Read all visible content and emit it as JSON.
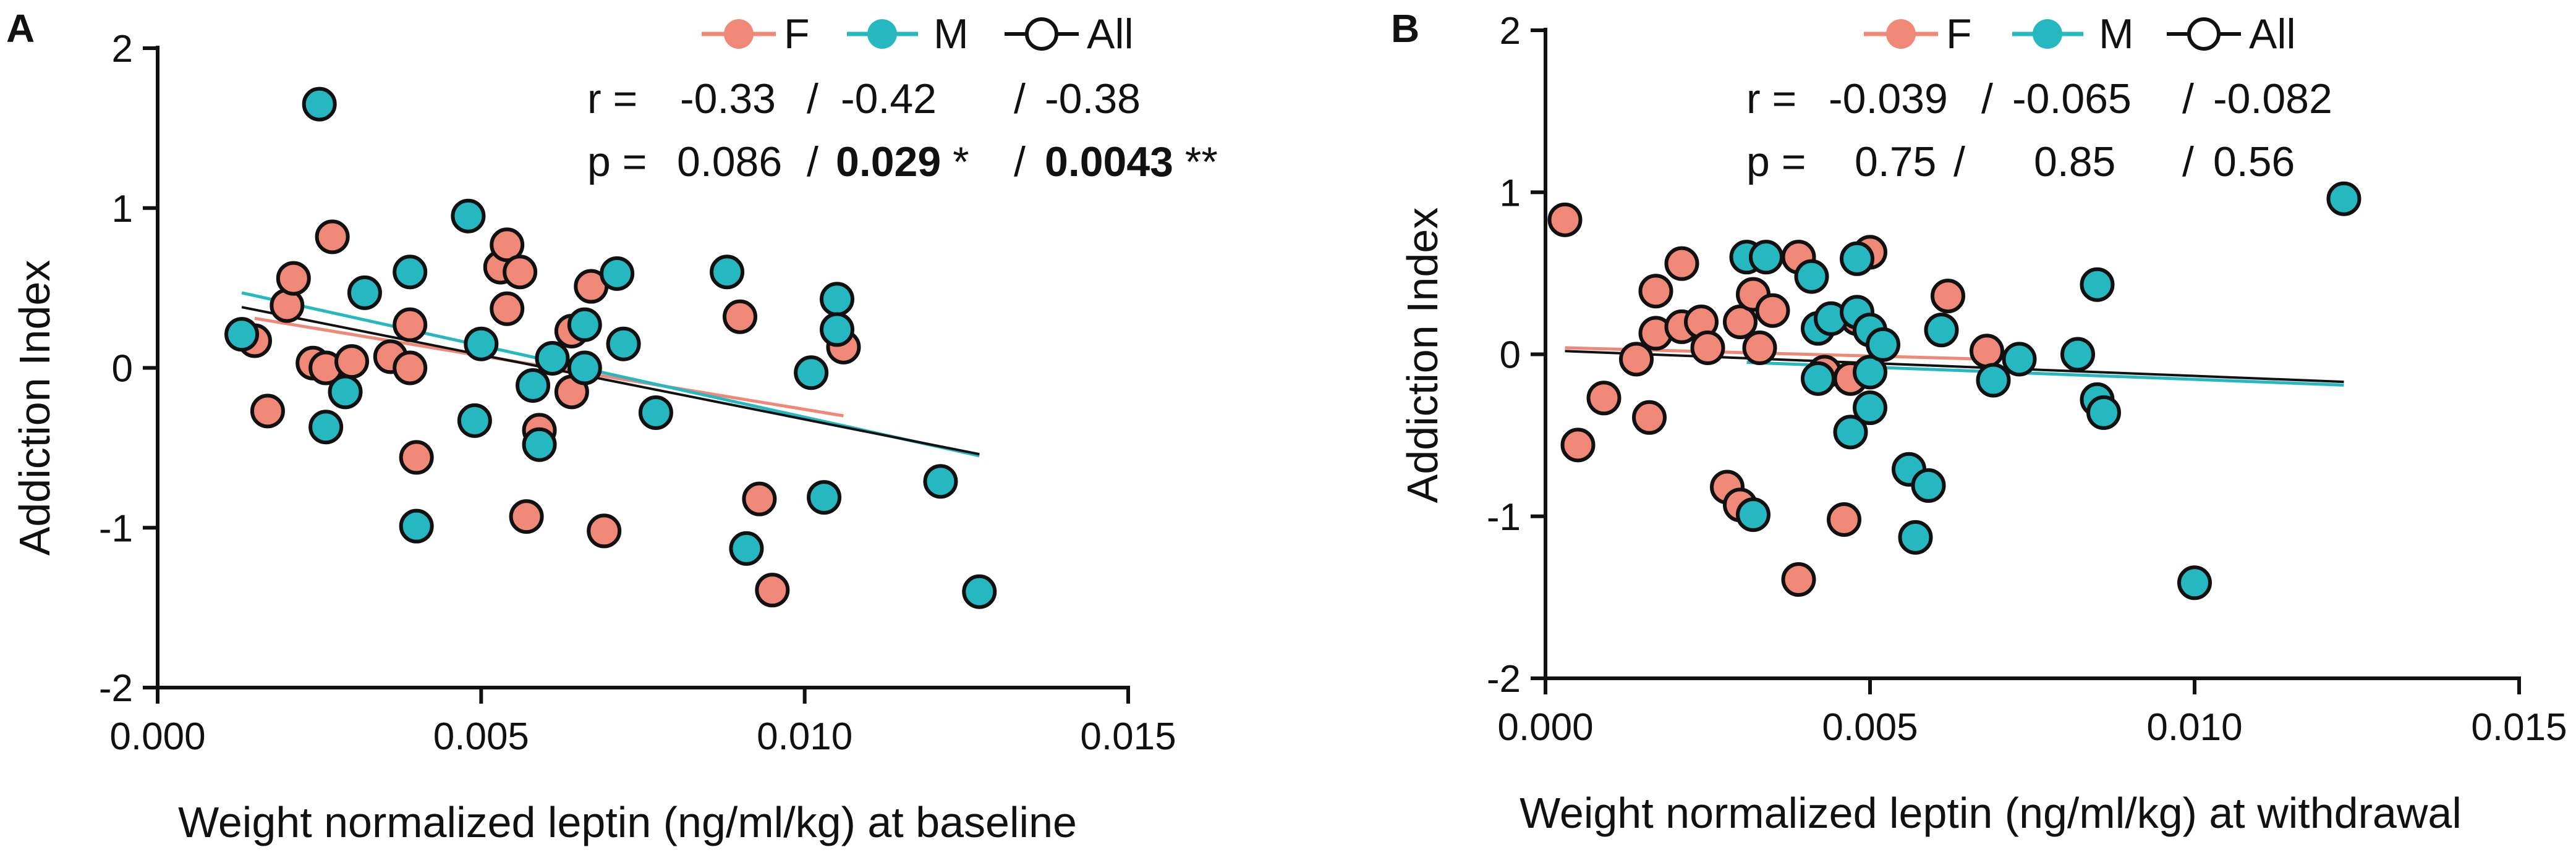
{
  "chart_data": [
    {
      "type": "scatter",
      "panel": "A",
      "xlabel": "Weight normalized leptin (ng/ml/kg) at baseline",
      "ylabel": "Addiction Index",
      "xlim": [
        0.0,
        0.015
      ],
      "ylim": [
        -2,
        2
      ],
      "xticks": [
        "0.000",
        "0.005",
        "0.010",
        "0.015"
      ],
      "yticks": [
        "2",
        "1",
        "0",
        "-1",
        "-2"
      ],
      "legend": {
        "placement": "top-right",
        "items": [
          {
            "key": "F",
            "label": "F"
          },
          {
            "key": "M",
            "label": "M"
          },
          {
            "key": "All",
            "label": "All"
          }
        ]
      },
      "stats": {
        "r_prefix": "r =",
        "r_values": [
          "-0.33",
          "-0.42",
          "-0.38"
        ],
        "p_prefix": "p =",
        "p_values": [
          {
            "value": "0.086",
            "stars": "",
            "bold": false
          },
          {
            "value": "0.029",
            "stars": "*",
            "bold": true
          },
          {
            "value": "0.0043",
            "stars": "**",
            "bold": true
          }
        ],
        "separator": "/"
      },
      "series": [
        {
          "name": "F",
          "points": [
            [
              0.0015,
              0.17
            ],
            [
              0.0017,
              -0.27
            ],
            [
              0.002,
              0.39
            ],
            [
              0.0021,
              0.56
            ],
            [
              0.0024,
              0.03
            ],
            [
              0.0026,
              0.0
            ],
            [
              0.0027,
              0.82
            ],
            [
              0.003,
              0.04
            ],
            [
              0.0036,
              0.07
            ],
            [
              0.0039,
              0.0
            ],
            [
              0.0039,
              0.27
            ],
            [
              0.004,
              -0.56
            ],
            [
              0.0053,
              0.63
            ],
            [
              0.0054,
              0.37
            ],
            [
              0.0054,
              0.77
            ],
            [
              0.0056,
              0.6
            ],
            [
              0.0057,
              -0.93
            ],
            [
              0.0059,
              -0.39
            ],
            [
              0.0064,
              -0.15
            ],
            [
              0.0064,
              0.23
            ],
            [
              0.0067,
              0.51
            ],
            [
              0.0069,
              -1.02
            ],
            [
              0.009,
              0.32
            ],
            [
              0.0093,
              -0.82
            ],
            [
              0.0095,
              -1.39
            ],
            [
              0.0106,
              0.13
            ]
          ]
        },
        {
          "name": "M",
          "points": [
            [
              0.0013,
              0.21
            ],
            [
              0.0025,
              1.65
            ],
            [
              0.0026,
              -0.37
            ],
            [
              0.0029,
              -0.15
            ],
            [
              0.0032,
              0.47
            ],
            [
              0.0039,
              0.6
            ],
            [
              0.004,
              -0.99
            ],
            [
              0.0048,
              0.95
            ],
            [
              0.0049,
              -0.33
            ],
            [
              0.005,
              0.15
            ],
            [
              0.0058,
              -0.11
            ],
            [
              0.0059,
              -0.48
            ],
            [
              0.0061,
              0.06
            ],
            [
              0.0066,
              0.0
            ],
            [
              0.0066,
              0.27
            ],
            [
              0.0071,
              0.59
            ],
            [
              0.0072,
              0.15
            ],
            [
              0.0077,
              -0.28
            ],
            [
              0.0088,
              0.6
            ],
            [
              0.0091,
              -1.13
            ],
            [
              0.0101,
              -0.03
            ],
            [
              0.0103,
              -0.81
            ],
            [
              0.0105,
              0.43
            ],
            [
              0.0105,
              0.24
            ],
            [
              0.0121,
              -0.71
            ],
            [
              0.0127,
              -1.4
            ]
          ]
        }
      ],
      "fit_lines": [
        {
          "name": "F",
          "x": [
            0.0015,
            0.0106
          ],
          "y": [
            0.31,
            -0.3
          ]
        },
        {
          "name": "M",
          "x": [
            0.0013,
            0.0127
          ],
          "y": [
            0.47,
            -0.55
          ]
        },
        {
          "name": "All",
          "x": [
            0.0013,
            0.0127
          ],
          "y": [
            0.38,
            -0.54
          ]
        }
      ]
    },
    {
      "type": "scatter",
      "panel": "B",
      "xlabel": "Weight normalized leptin (ng/ml/kg) at withdrawal",
      "ylabel": "Addiction Index",
      "xlim": [
        0.0,
        0.015
      ],
      "ylim": [
        -2,
        2
      ],
      "xticks": [
        "0.000",
        "0.005",
        "0.010",
        "0.015"
      ],
      "yticks": [
        "2",
        "1",
        "0",
        "-1",
        "-2"
      ],
      "legend": {
        "placement": "top-center",
        "items": [
          {
            "key": "F",
            "label": "F"
          },
          {
            "key": "M",
            "label": "M"
          },
          {
            "key": "All",
            "label": "All"
          }
        ]
      },
      "stats": {
        "r_prefix": "r =",
        "r_values": [
          "-0.039",
          "-0.065",
          "-0.082"
        ],
        "p_prefix": "p =",
        "p_values": [
          {
            "value": "0.75",
            "stars": "",
            "bold": false
          },
          {
            "value": "0.85",
            "stars": "",
            "bold": false
          },
          {
            "value": "0.56",
            "stars": "",
            "bold": false
          }
        ],
        "separator": "/"
      },
      "series": [
        {
          "name": "F",
          "points": [
            [
              0.0003,
              0.83
            ],
            [
              0.0005,
              -0.56
            ],
            [
              0.0009,
              -0.27
            ],
            [
              0.0014,
              -0.03
            ],
            [
              0.0016,
              -0.39
            ],
            [
              0.0017,
              0.39
            ],
            [
              0.0017,
              0.13
            ],
            [
              0.0021,
              0.56
            ],
            [
              0.0021,
              0.17
            ],
            [
              0.0024,
              0.2
            ],
            [
              0.0025,
              0.04
            ],
            [
              0.0028,
              -0.82
            ],
            [
              0.003,
              -0.93
            ],
            [
              0.003,
              0.2
            ],
            [
              0.0032,
              0.37
            ],
            [
              0.0033,
              0.04
            ],
            [
              0.0035,
              0.27
            ],
            [
              0.0039,
              -1.39
            ],
            [
              0.0039,
              0.6
            ],
            [
              0.0043,
              -0.11
            ],
            [
              0.0046,
              -1.02
            ],
            [
              0.0047,
              -0.15
            ],
            [
              0.0048,
              0.22
            ],
            [
              0.005,
              0.63
            ],
            [
              0.0062,
              0.36
            ],
            [
              0.0068,
              0.02
            ]
          ]
        },
        {
          "name": "M",
          "points": [
            [
              0.0031,
              0.6
            ],
            [
              0.0032,
              -0.99
            ],
            [
              0.0034,
              0.6
            ],
            [
              0.0041,
              0.48
            ],
            [
              0.0042,
              -0.15
            ],
            [
              0.0042,
              0.16
            ],
            [
              0.0044,
              0.22
            ],
            [
              0.0047,
              -0.48
            ],
            [
              0.0048,
              0.26
            ],
            [
              0.0048,
              0.59
            ],
            [
              0.005,
              0.15
            ],
            [
              0.005,
              -0.33
            ],
            [
              0.005,
              -0.11
            ],
            [
              0.0052,
              0.06
            ],
            [
              0.0056,
              -0.71
            ],
            [
              0.0057,
              -1.13
            ],
            [
              0.0059,
              -0.81
            ],
            [
              0.0061,
              0.15
            ],
            [
              0.0069,
              -0.16
            ],
            [
              0.0073,
              -0.03
            ],
            [
              0.0082,
              0.0
            ],
            [
              0.0085,
              -0.28
            ],
            [
              0.0085,
              0.43
            ],
            [
              0.0086,
              -0.36
            ],
            [
              0.01,
              -1.41
            ],
            [
              0.0123,
              0.96
            ]
          ]
        }
      ],
      "fit_lines": [
        {
          "name": "F",
          "x": [
            0.0003,
            0.0068
          ],
          "y": [
            0.04,
            -0.03
          ]
        },
        {
          "name": "M",
          "x": [
            0.0031,
            0.0123
          ],
          "y": [
            -0.05,
            -0.19
          ]
        },
        {
          "name": "All",
          "x": [
            0.0003,
            0.0123
          ],
          "y": [
            0.02,
            -0.17
          ]
        }
      ]
    }
  ],
  "colors": {
    "F": "#f08878",
    "M": "#26b8c0",
    "All": "#111111",
    "axis": "#111111",
    "point_edge": "#111111"
  }
}
